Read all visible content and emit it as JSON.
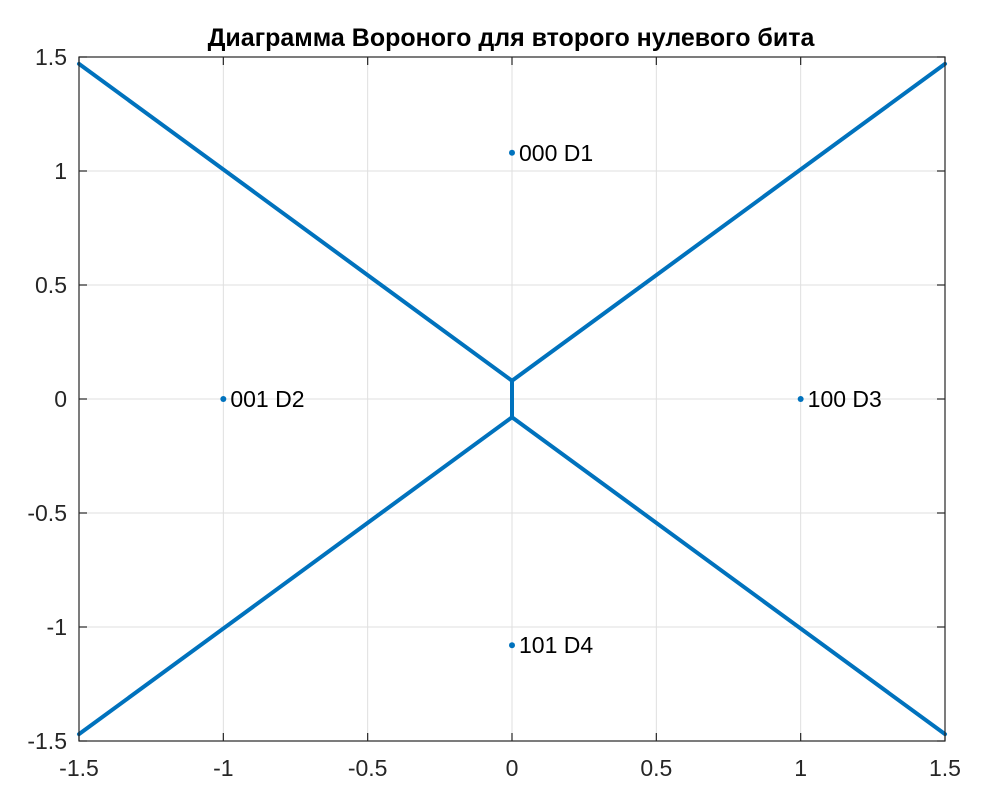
{
  "chart_data": {
    "type": "line",
    "title": "Диаграмма Вороного для второго нулевого бита",
    "xlabel": "",
    "ylabel": "",
    "xlim": [
      -1.5,
      1.5
    ],
    "ylim": [
      -1.5,
      1.5
    ],
    "xticks": [
      -1.5,
      -1,
      -0.5,
      0,
      0.5,
      1,
      1.5
    ],
    "xtick_labels": [
      "-1.5",
      "-1",
      "-0.5",
      "0",
      "0.5",
      "1",
      "1.5"
    ],
    "yticks": [
      -1.5,
      -1,
      -0.5,
      0,
      0.5,
      1,
      1.5
    ],
    "ytick_labels": [
      "-1.5",
      "-1",
      "-0.5",
      "0",
      "0.5",
      "1",
      "1.5"
    ],
    "grid": true,
    "box": true,
    "line_color": "#0072BD",
    "points": [
      {
        "x": 0,
        "y": 1.08,
        "label": "000 D1"
      },
      {
        "x": -1,
        "y": 0,
        "label": "001 D2"
      },
      {
        "x": 1,
        "y": 0,
        "label": "100 D3"
      },
      {
        "x": 0,
        "y": -1.08,
        "label": "101 D4"
      }
    ],
    "edges": [
      {
        "x": [
          -1.5,
          0
        ],
        "y": [
          1.47,
          0.08
        ]
      },
      {
        "x": [
          0,
          1.5
        ],
        "y": [
          0.08,
          1.47
        ]
      },
      {
        "x": [
          0,
          0
        ],
        "y": [
          0.08,
          -0.08
        ]
      },
      {
        "x": [
          -1.5,
          0
        ],
        "y": [
          -1.47,
          -0.08
        ]
      },
      {
        "x": [
          0,
          1.5
        ],
        "y": [
          -0.08,
          -1.47
        ]
      }
    ]
  }
}
